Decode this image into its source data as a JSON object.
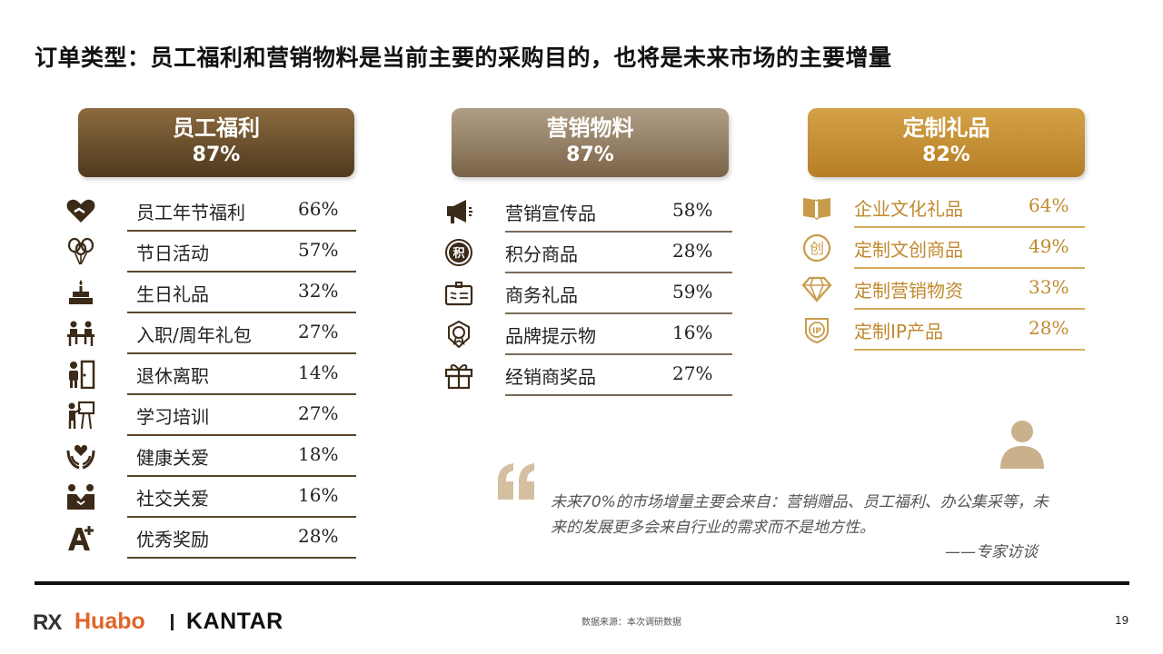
{
  "title": "订单类型：员工福利和营销物料是当前主要的采购目的，也将是未来市场的主要增量",
  "categories": [
    {
      "name": "员工福利",
      "percent": "87%"
    },
    {
      "name": "营销物料",
      "percent": "87%"
    },
    {
      "name": "定制礼品",
      "percent": "82%"
    }
  ],
  "employee_benefits": [
    {
      "label": "员工年节福利",
      "value": "66%",
      "icon": "heart-hand-icon"
    },
    {
      "label": "节日活动",
      "value": "57%",
      "icon": "balloons-icon"
    },
    {
      "label": "生日礼品",
      "value": "32%",
      "icon": "birthday-cake-icon"
    },
    {
      "label": "入职/周年礼包",
      "value": "27%",
      "icon": "meeting-table-icon"
    },
    {
      "label": "退休离职",
      "value": "14%",
      "icon": "person-exit-door-icon"
    },
    {
      "label": "学习培训",
      "value": "27%",
      "icon": "presentation-training-icon"
    },
    {
      "label": "健康关爱",
      "value": "18%",
      "icon": "caring-hands-icon"
    },
    {
      "label": "社交关爱",
      "value": "16%",
      "icon": "handshake-icon"
    },
    {
      "label": "优秀奖励",
      "value": "28%",
      "icon": "a-plus-icon"
    }
  ],
  "marketing_materials": [
    {
      "label": "营销宣传品",
      "value": "58%",
      "icon": "megaphone-icon"
    },
    {
      "label": "积分商品",
      "value": "28%",
      "icon": "points-badge-icon"
    },
    {
      "label": "商务礼品",
      "value": "59%",
      "icon": "business-card-icon"
    },
    {
      "label": "品牌提示物",
      "value": "16%",
      "icon": "brand-badge-icon"
    },
    {
      "label": "经销商奖品",
      "value": "27%",
      "icon": "gift-box-icon"
    }
  ],
  "custom_gifts": [
    {
      "label": "企业文化礼品",
      "value": "64%",
      "icon": "open-book-icon"
    },
    {
      "label": "定制文创商品",
      "value": "49%",
      "icon": "chuang-circle-icon"
    },
    {
      "label": "定制营销物资",
      "value": "33%",
      "icon": "diamond-icon"
    },
    {
      "label": "定制IP产品",
      "value": "28%",
      "icon": "ip-shield-icon"
    }
  ],
  "quote": {
    "text": "未来70%的市场增量主要会来自：营销赠品、员工福利、办公集采等，未来的发展更多会来自行业的需求而不是地方性。",
    "source": "——专家访谈"
  },
  "footer": {
    "logo_rx": "RX",
    "logo_huabo": "Huabo",
    "logo_kantar": "KANTAR",
    "source": "数据来源：本次调研数据",
    "page_number": "19"
  },
  "colors": {
    "employee_header": "#6b5030",
    "marketing_header": "#9a8466",
    "custom_header": "#c8912f",
    "custom_text": "#c08a2e",
    "huabo_orange": "#e0652a"
  }
}
